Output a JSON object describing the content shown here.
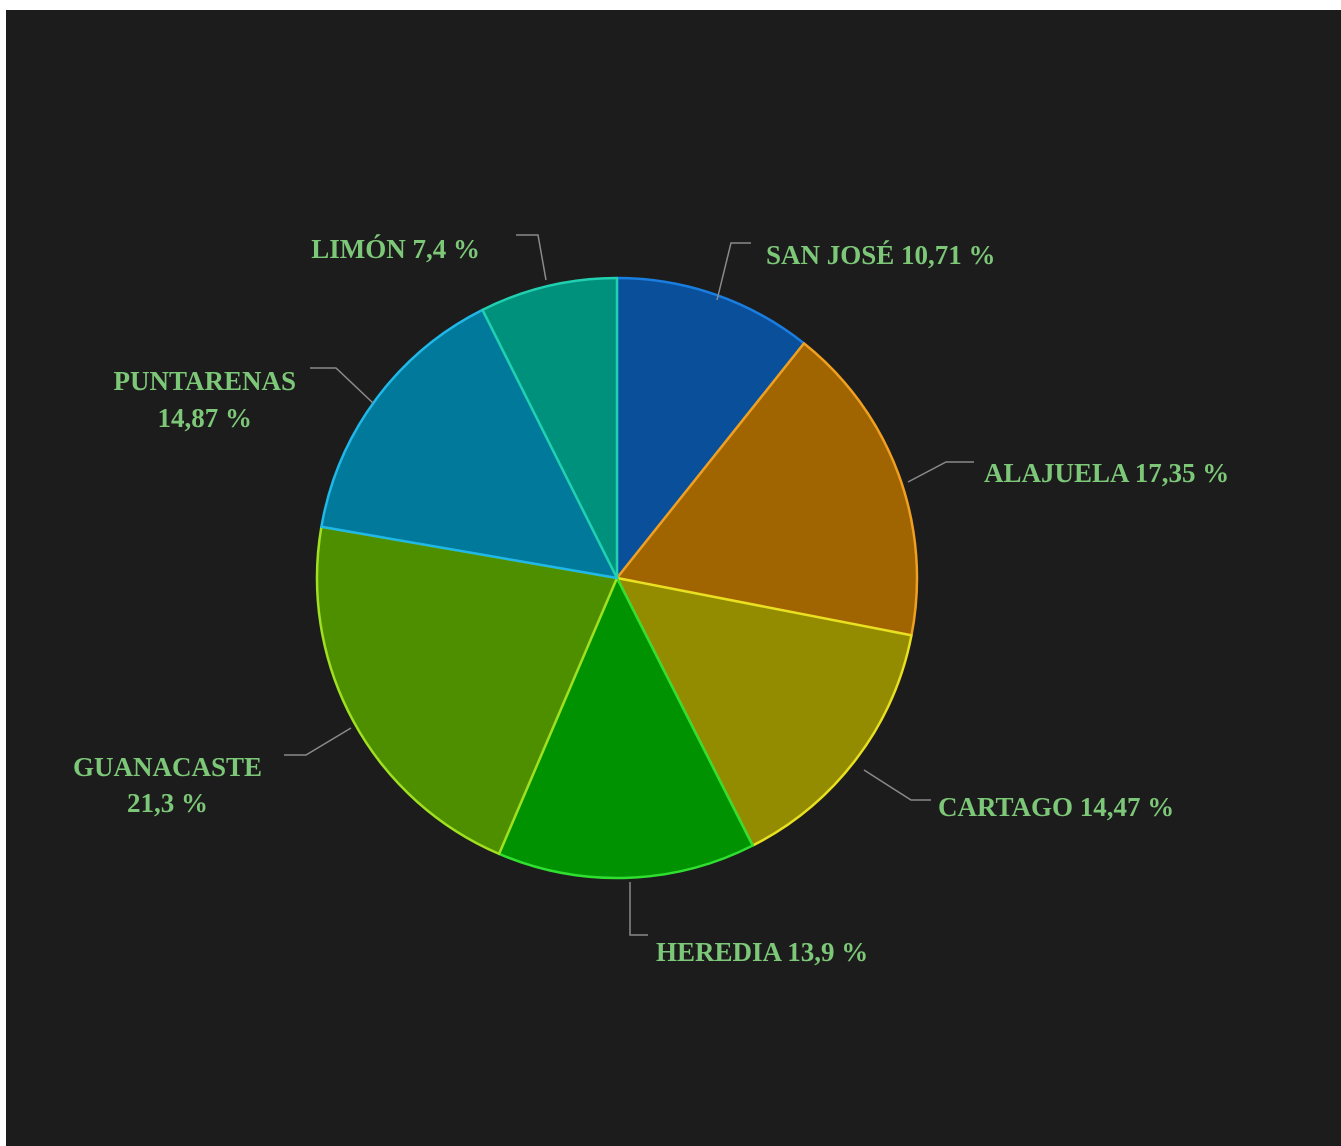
{
  "chart_data": {
    "type": "pie",
    "title": "",
    "start_angle_deg": 0,
    "direction": "clockwise",
    "label_color": "#7dc878",
    "leader_color": "#8a8a8a",
    "slices": [
      {
        "name": "SAN JOSÉ",
        "value": 10.71,
        "label_lines": [
          "SAN JOSÉ 10,71 %"
        ],
        "color": "#0a4f9a",
        "edge": "#1a7de0"
      },
      {
        "name": "ALAJUELA",
        "value": 17.35,
        "label_lines": [
          "ALAJUELA 17,35 %"
        ],
        "color": "#a06400",
        "edge": "#f0a020"
      },
      {
        "name": "CARTAGO",
        "value": 14.47,
        "label_lines": [
          "CARTAGO 14,47 %"
        ],
        "color": "#948c00",
        "edge": "#e8e020"
      },
      {
        "name": "HEREDIA",
        "value": 13.9,
        "label_lines": [
          "HEREDIA 13,9 %"
        ],
        "color": "#009200",
        "edge": "#30e030"
      },
      {
        "name": "GUANACASTE",
        "value": 21.3,
        "label_lines": [
          "GUANACASTE",
          "21,3 %"
        ],
        "color": "#4e8f00",
        "edge": "#a0e020"
      },
      {
        "name": "PUNTARENAS",
        "value": 14.87,
        "label_lines": [
          "PUNTARENAS",
          "14,87 %"
        ],
        "color": "#00799a",
        "edge": "#20b8e8"
      },
      {
        "name": "LIMÓN",
        "value": 7.4,
        "label_lines": [
          "LIMÓN 7,4 %"
        ],
        "color": "#00917c",
        "edge": "#20d0b0"
      }
    ]
  }
}
